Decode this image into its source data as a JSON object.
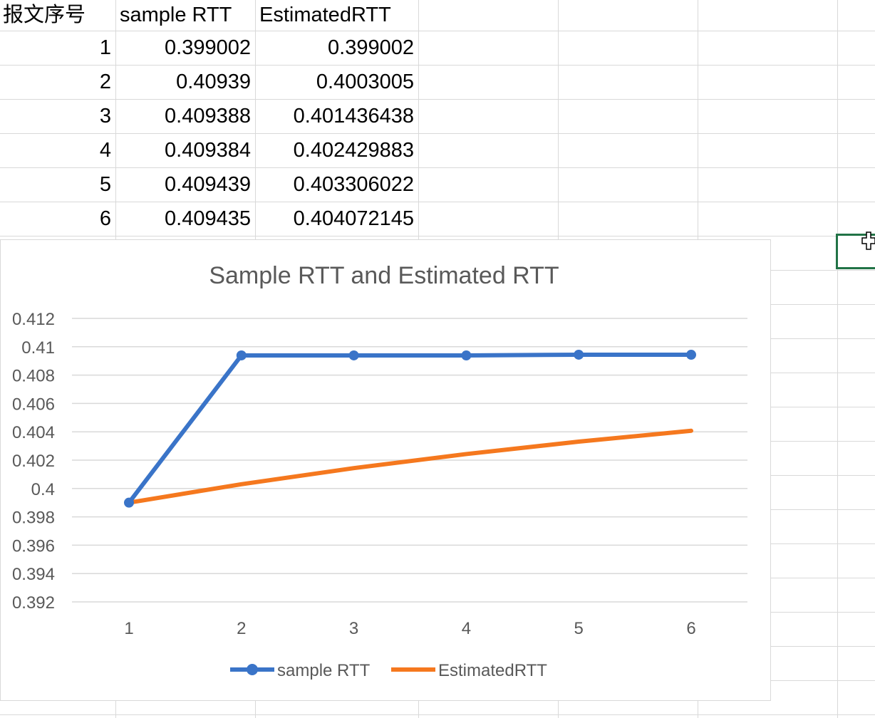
{
  "table": {
    "headers": [
      "报文序号",
      "sample RTT",
      "EstimatedRTT"
    ],
    "rows": [
      [
        "1",
        "0.399002",
        "0.399002"
      ],
      [
        "2",
        "0.40939",
        "0.4003005"
      ],
      [
        "3",
        "0.409388",
        "0.401436438"
      ],
      [
        "4",
        "0.409384",
        "0.402429883"
      ],
      [
        "5",
        "0.409439",
        "0.403306022"
      ],
      [
        "6",
        "0.409435",
        "0.404072145"
      ]
    ]
  },
  "colors": {
    "sample": "#3a74c8",
    "estimated": "#f5781e",
    "grid": "#d9d9d9",
    "selection": "#217346"
  },
  "chart_data": {
    "type": "line",
    "title": "Sample RTT and Estimated RTT",
    "categories": [
      "1",
      "2",
      "3",
      "4",
      "5",
      "6"
    ],
    "series": [
      {
        "name": "sample RTT",
        "values": [
          0.399002,
          0.40939,
          0.409388,
          0.409384,
          0.409439,
          0.409435
        ],
        "markers": true
      },
      {
        "name": "EstimatedRTT",
        "values": [
          0.399002,
          0.4003005,
          0.401436438,
          0.402429883,
          0.403306022,
          0.404072145
        ],
        "markers": false
      }
    ],
    "y_ticks": [
      "0.392",
      "0.394",
      "0.396",
      "0.398",
      "0.4",
      "0.402",
      "0.404",
      "0.406",
      "0.408",
      "0.41",
      "0.412"
    ],
    "ylim": [
      0.392,
      0.412
    ],
    "grid": true,
    "legend": "bottom"
  }
}
